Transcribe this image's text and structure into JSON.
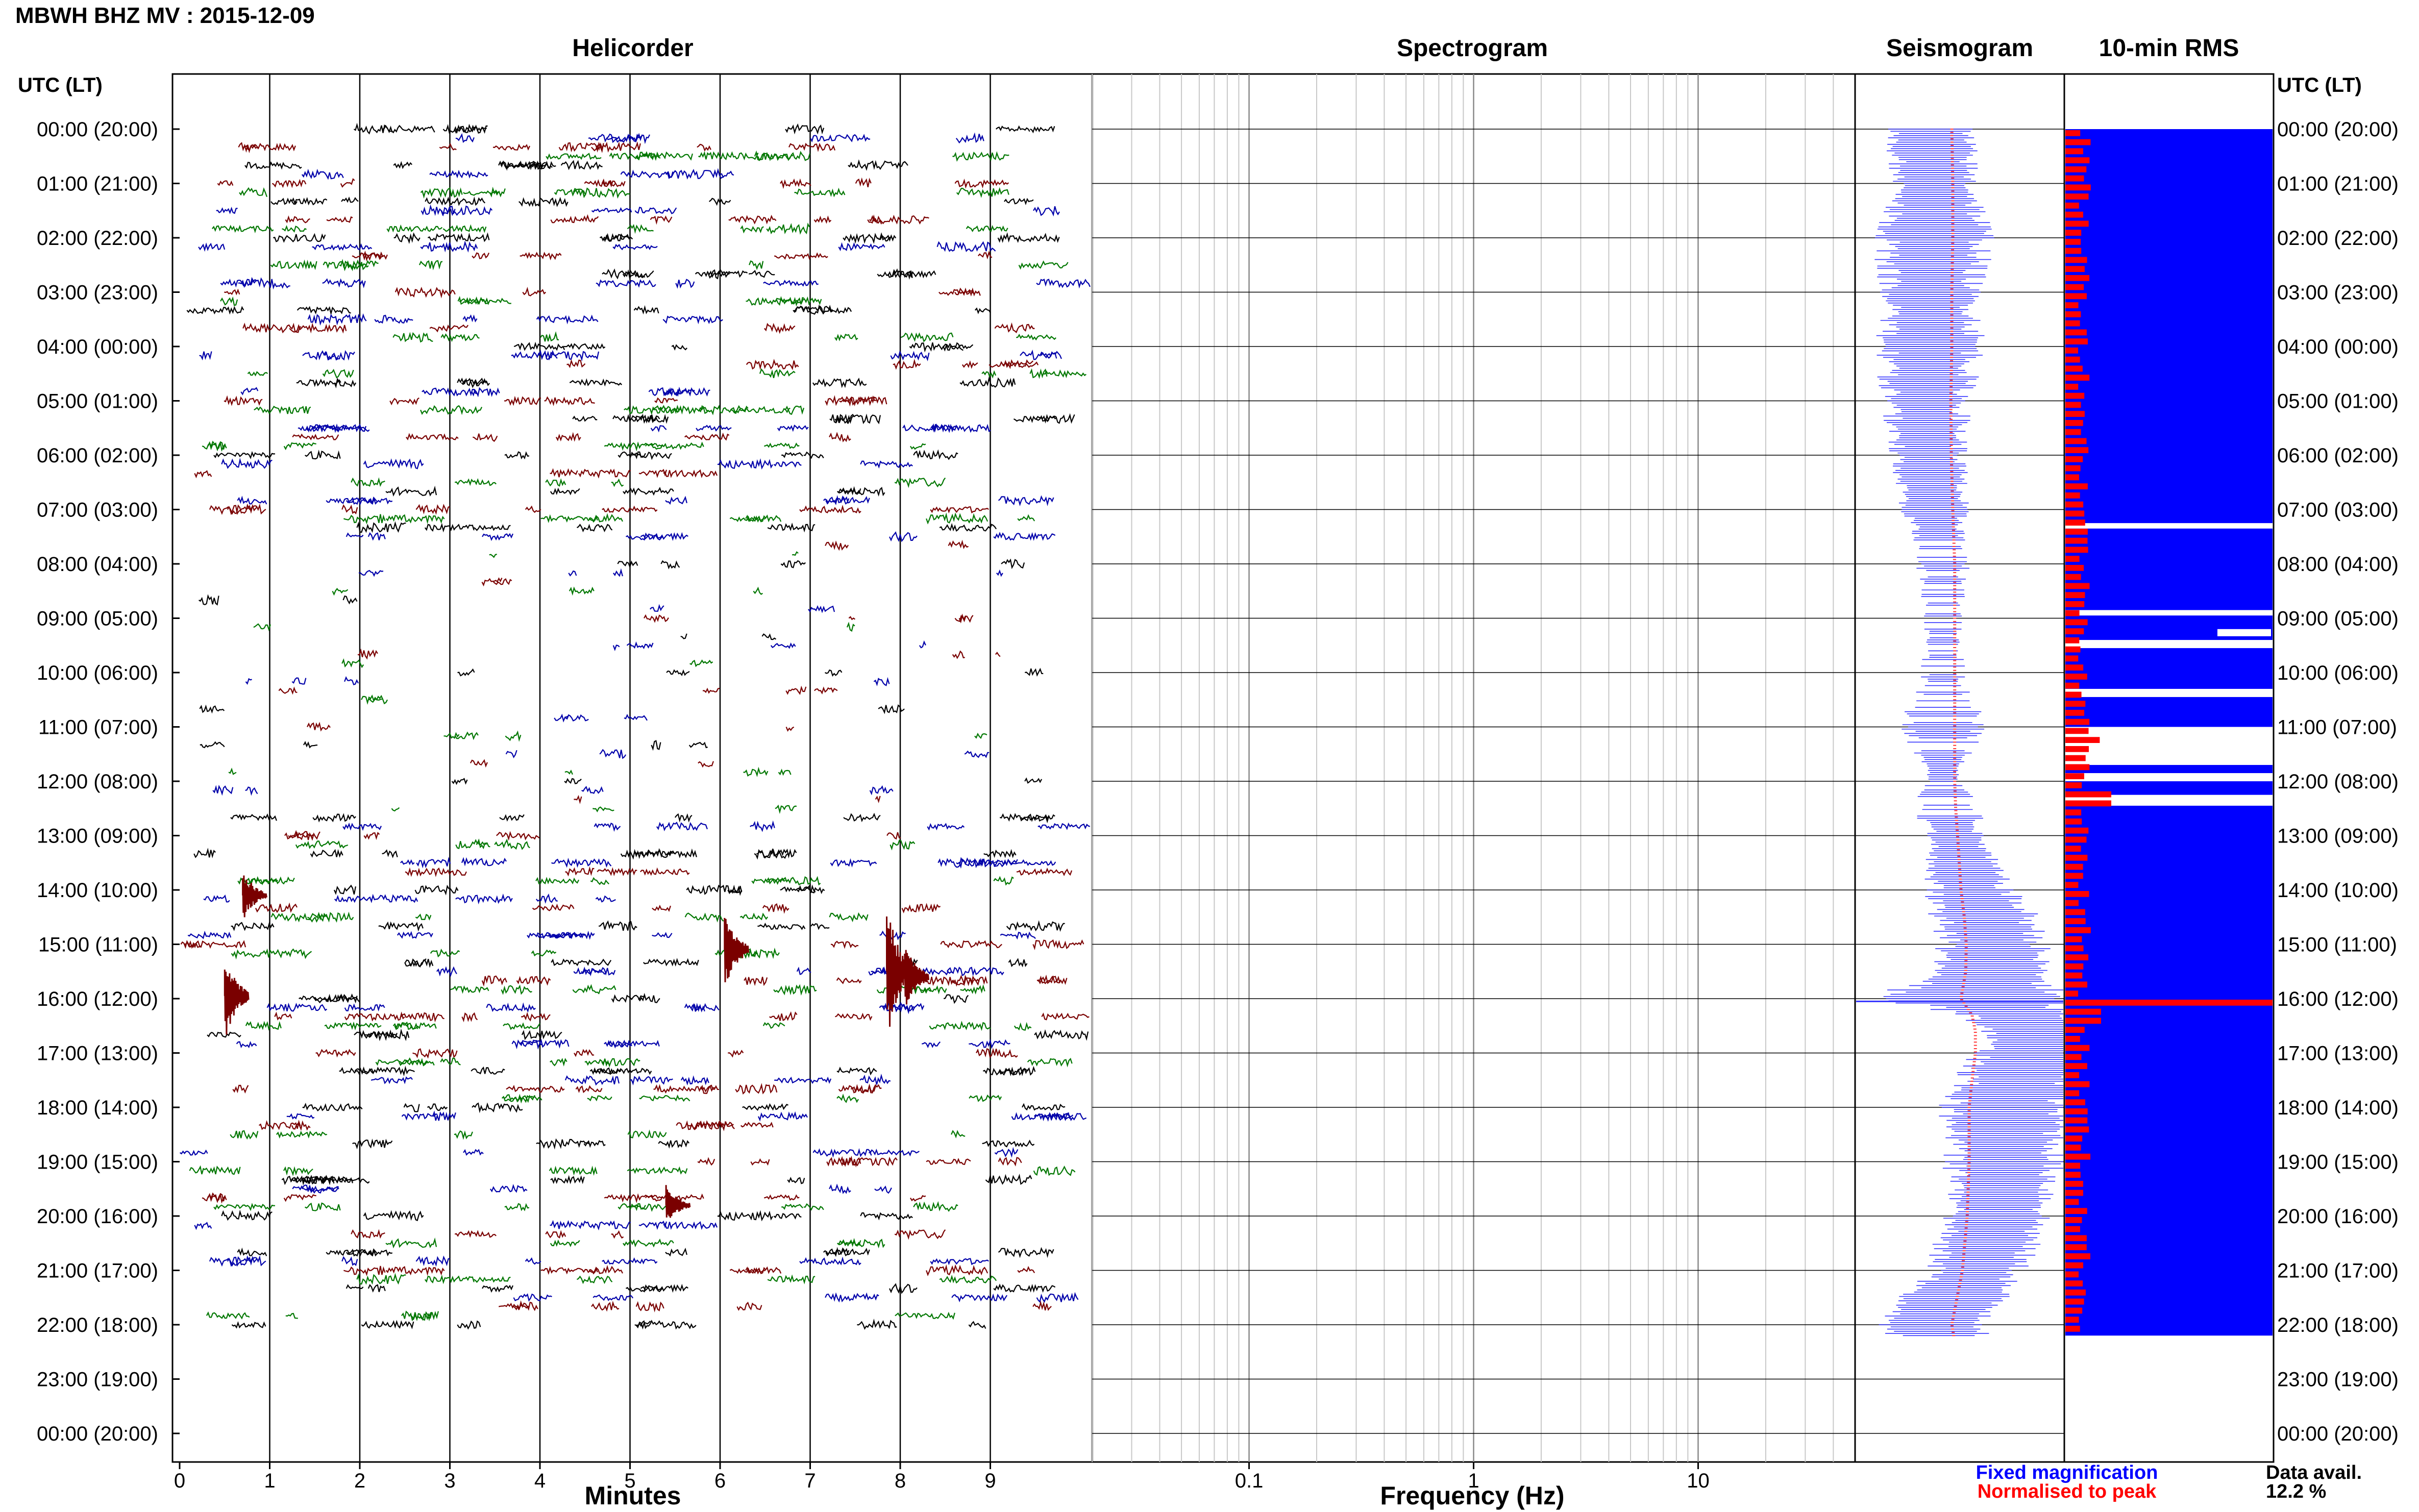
{
  "page_title": "MBWH BHZ MV : 2015-12-09",
  "panels": {
    "helicorder": "Helicorder",
    "spectrogram": "Spectrogram",
    "seismogram": "Seismogram",
    "rms": "10-min RMS"
  },
  "axis": {
    "utc_header_left": "UTC (LT)",
    "utc_header_right": "UTC (LT)",
    "minutes_label": "Minutes",
    "frequency_label": "Frequency (Hz)"
  },
  "legend": {
    "fixed": "Fixed magnification",
    "normalised": "Normalised to peak",
    "avail_label": "Data avail.",
    "avail_value": "12.2 %"
  },
  "colors": {
    "trace_cycle": [
      "#000000",
      "#0000aa",
      "#7a0000",
      "#007700"
    ],
    "seismogram": "#3333ff",
    "seismogram_norm": "#ff3333",
    "rms_fixed": "#0000ff",
    "rms_norm": "#ff0000"
  },
  "chart_data": [
    {
      "type": "line",
      "name": "helicorder",
      "title": "Helicorder",
      "xlabel": "Minutes",
      "x_ticks": [
        "0",
        "1",
        "2",
        "3",
        "4",
        "5",
        "6",
        "7",
        "8",
        "9"
      ],
      "xlim": [
        0,
        10
      ],
      "y_tick_labels": [
        "00:00 (20:00)",
        "01:00 (21:00)",
        "02:00 (22:00)",
        "03:00 (23:00)",
        "04:00 (00:00)",
        "05:00 (01:00)",
        "06:00 (02:00)",
        "07:00 (03:00)",
        "08:00 (04:00)",
        "09:00 (05:00)",
        "10:00 (06:00)",
        "11:00 (07:00)",
        "12:00 (08:00)",
        "13:00 (09:00)",
        "14:00 (10:00)",
        "15:00 (11:00)",
        "16:00 (12:00)",
        "17:00 (13:00)",
        "18:00 (14:00)",
        "19:00 (15:00)",
        "20:00 (16:00)",
        "21:00 (17:00)",
        "22:00 (18:00)",
        "23:00 (19:00)",
        "00:00 (20:00)"
      ],
      "rows_per_hour": 6,
      "data_hours": [
        [
          0,
          22.2
        ]
      ],
      "sparse_hours": [
        [
          7.6,
          12.6
        ]
      ],
      "events": [
        {
          "hour": 15.95,
          "minute": 0.5,
          "amp": 1.6
        },
        {
          "hour": 14.1,
          "minute": 0.7,
          "amp": 0.9
        },
        {
          "hour": 15.1,
          "minute": 6.05,
          "amp": 1.4
        },
        {
          "hour": 15.5,
          "minute": 7.85,
          "amp": 2.4
        },
        {
          "hour": 15.6,
          "minute": 8.05,
          "amp": 1.2
        },
        {
          "hour": 19.8,
          "minute": 5.4,
          "amp": 0.7
        }
      ]
    },
    {
      "type": "heatmap",
      "name": "spectrogram",
      "title": "Spectrogram",
      "xlabel": "Frequency (Hz)",
      "x_scale": "log",
      "xlim": [
        0.02,
        50
      ],
      "x_ticks": [
        0.1,
        1,
        10
      ],
      "x_tick_labels": [
        "0.1",
        "1",
        "10"
      ]
    },
    {
      "type": "line",
      "name": "seismogram",
      "title": "Seismogram",
      "series": [
        {
          "name": "Fixed magnification",
          "hours": [
            0,
            1,
            2,
            3,
            4,
            5,
            6,
            7,
            7.5,
            8,
            9,
            10,
            11,
            12,
            12.5,
            13,
            14,
            14.5,
            15,
            15.5,
            16,
            16.3,
            16.6,
            17,
            17.5,
            18,
            19,
            20,
            21,
            21.5,
            22,
            22.2
          ],
          "halfwidth": [
            0.4,
            0.4,
            0.55,
            0.45,
            0.5,
            0.4,
            0.35,
            0.3,
            0.25,
            0.25,
            0.2,
            0.2,
            0.4,
            0.15,
            0.35,
            0.25,
            0.4,
            0.5,
            0.5,
            0.55,
            0.9,
            0.55,
            0.45,
            0.55,
            0.6,
            0.6,
            0.55,
            0.5,
            0.45,
            0.5,
            0.6,
            0.55
          ],
          "center": [
            0.36,
            0.38,
            0.38,
            0.36,
            0.36,
            0.34,
            0.35,
            0.38,
            0.4,
            0.42,
            0.42,
            0.42,
            0.42,
            0.42,
            0.44,
            0.48,
            0.55,
            0.62,
            0.66,
            0.65,
            0.55,
            0.78,
            0.85,
            0.85,
            0.78,
            0.72,
            0.72,
            0.68,
            0.58,
            0.47,
            0.36,
            0.4
          ]
        },
        {
          "name": "Normalised to peak",
          "hours": [
            0,
            22.2
          ],
          "position": 0.55
        }
      ]
    },
    {
      "type": "bar",
      "name": "rms",
      "title": "10-min RMS",
      "series": [
        {
          "name": "Fixed magnification",
          "hour_blocks": [
            [
              0,
              7.25
            ],
            [
              7.35,
              8.85
            ],
            [
              8.95,
              9.4
            ],
            [
              9.6,
              9.45
            ],
            [
              9.55,
              10.3
            ],
            [
              10.45,
              11.0
            ],
            [
              11.7,
              11.85
            ],
            [
              12.0,
              12.25
            ],
            [
              12.45,
              22.2
            ]
          ]
        },
        {
          "name": "Normalised to peak",
          "peak_hour": 16.0
        }
      ]
    }
  ]
}
